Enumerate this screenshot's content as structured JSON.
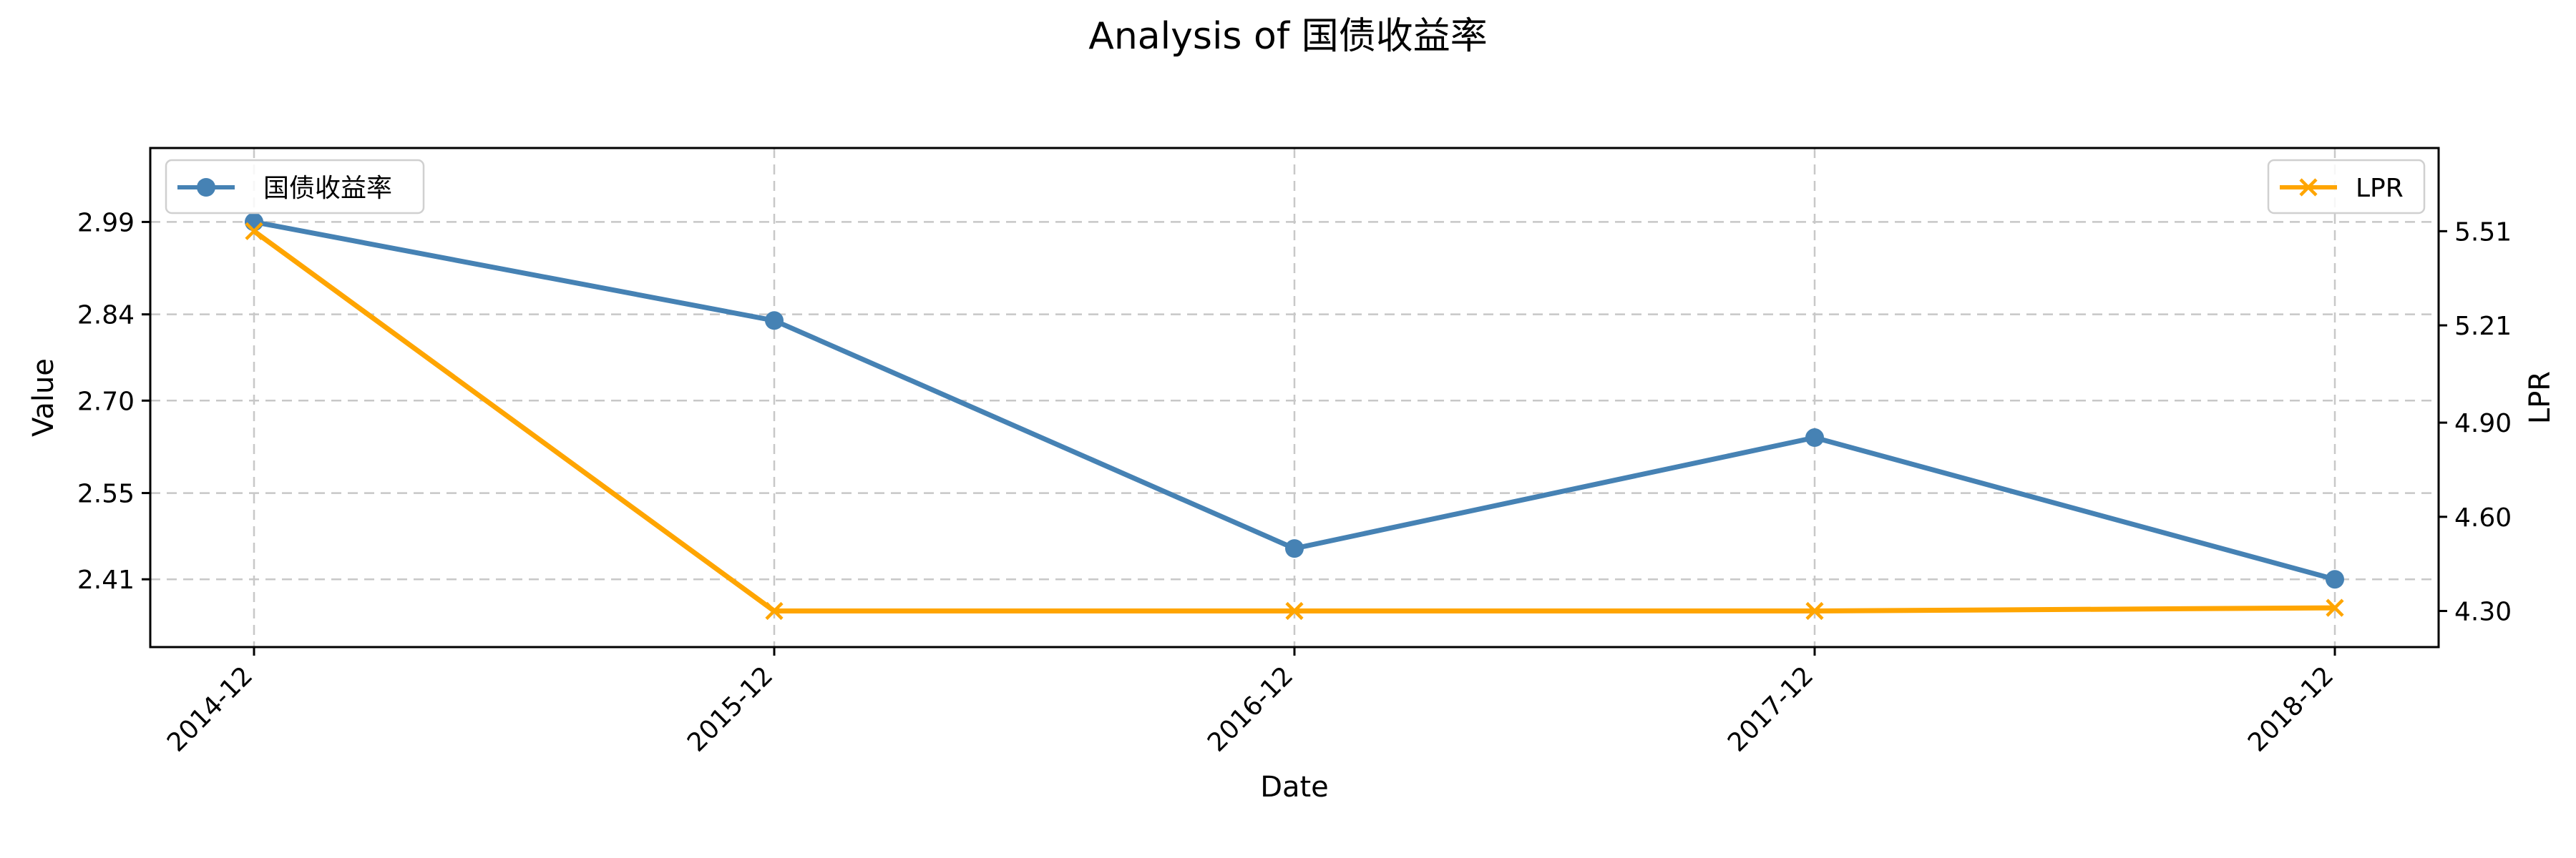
{
  "chart_data": {
    "type": "line",
    "title": "Analysis of 国债收益率",
    "xlabel": "Date",
    "ylabel": "Value",
    "ylabel_right": "LPR",
    "categories": [
      "2014-12",
      "2015-12",
      "2016-12",
      "2017-12",
      "2018-12"
    ],
    "ylim": [
      2.3,
      3.11
    ],
    "ylim_right": [
      4.185,
      5.775
    ],
    "yticks": [
      "2.41",
      "2.55",
      "2.70",
      "2.84",
      "2.99"
    ],
    "yticks_right": [
      "4.30",
      "4.60",
      "4.90",
      "5.21",
      "5.51"
    ],
    "grid": true,
    "series": [
      {
        "name": "国债收益率",
        "axis": "left",
        "color": "#4682b4",
        "marker": "circle",
        "values": [
          2.99,
          2.83,
          2.46,
          2.64,
          2.41
        ],
        "legend_position": "top-left"
      },
      {
        "name": "LPR",
        "axis": "right",
        "color": "#ffa500",
        "marker": "x",
        "values": [
          5.51,
          4.3,
          4.3,
          4.3,
          4.31
        ],
        "legend_position": "top-right"
      }
    ]
  }
}
